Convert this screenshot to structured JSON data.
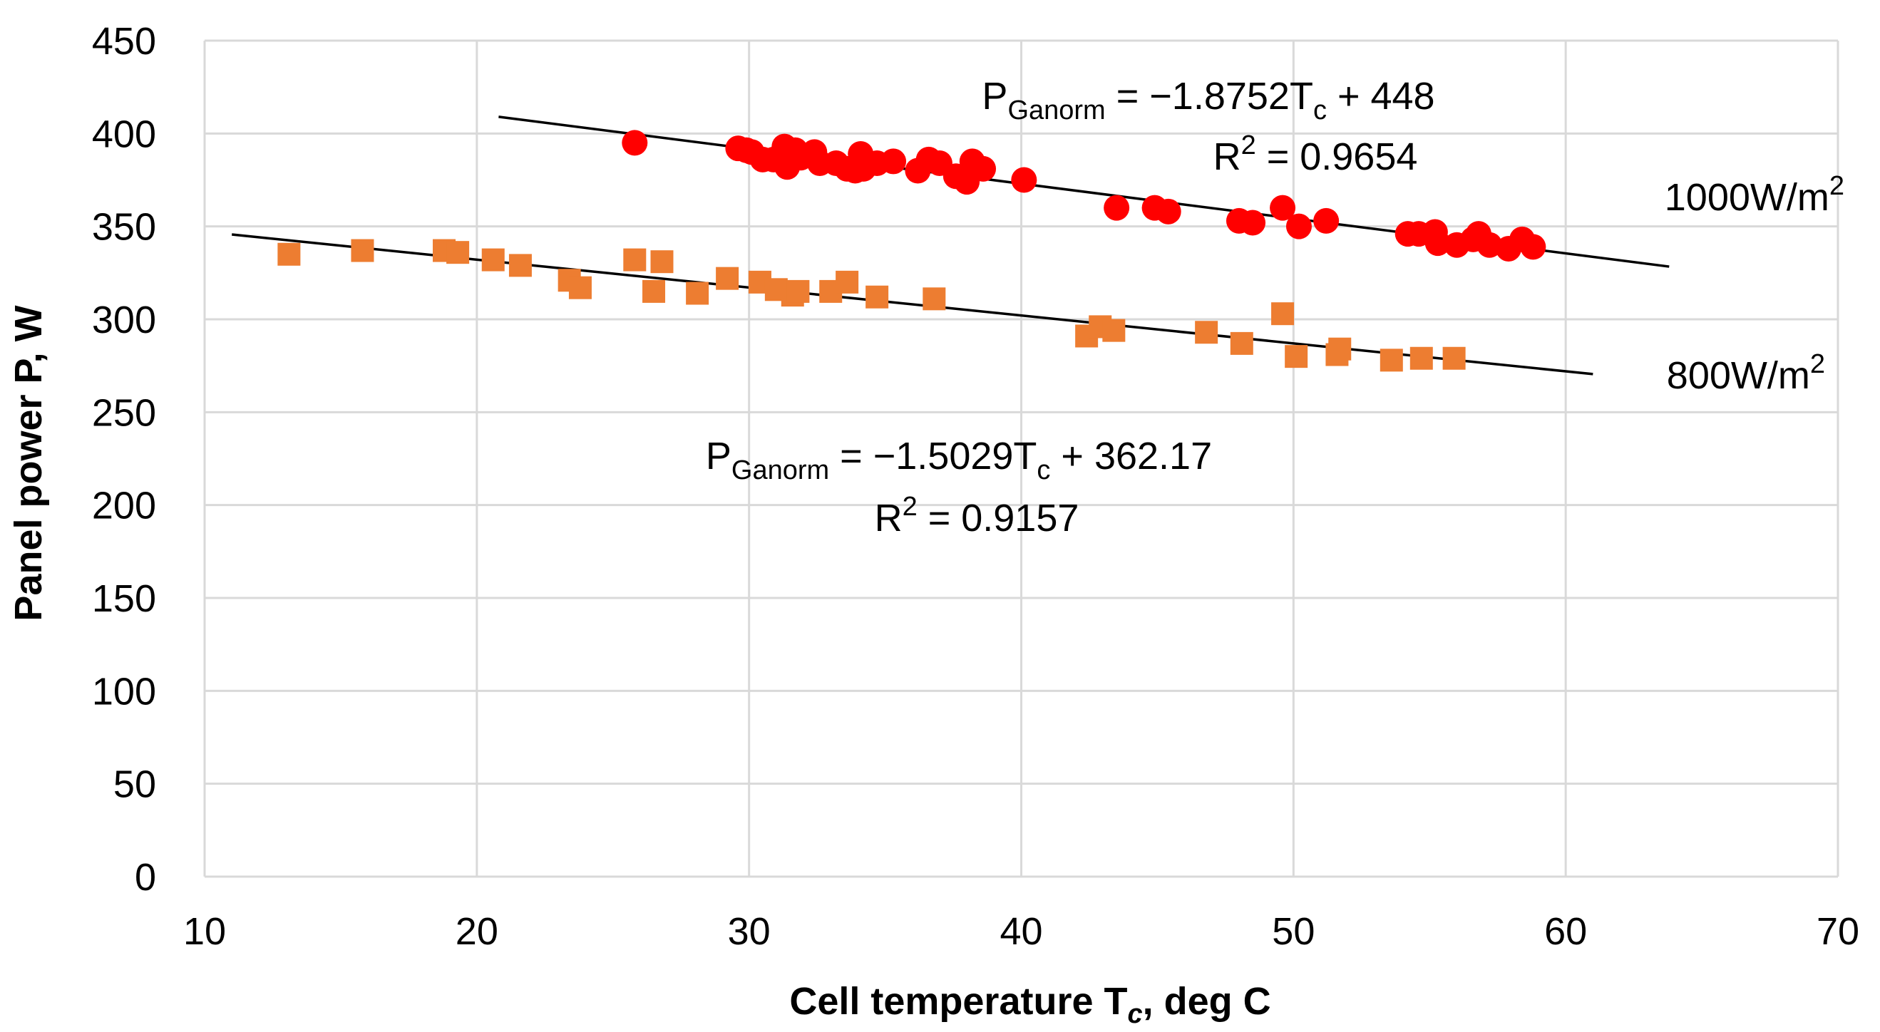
{
  "chart_data": {
    "type": "scatter",
    "title": "",
    "xlabel": {
      "prefix": "Cell temperature T",
      "subscript": "c",
      "suffix": ", deg C"
    },
    "ylabel": "Panel power P, W",
    "xlim": [
      10,
      70
    ],
    "ylim": [
      0,
      450
    ],
    "xticks": [
      10,
      20,
      30,
      40,
      50,
      60,
      70
    ],
    "yticks": [
      0,
      50,
      100,
      150,
      200,
      250,
      300,
      350,
      400,
      450
    ],
    "grid": true,
    "series": [
      {
        "name": "1000W/m2",
        "label_main": "1000W/m",
        "label_sup": "2",
        "marker": "circle",
        "color": "#ff0000",
        "x": [
          25.8,
          29.6,
          29.9,
          30.1,
          30.5,
          30.9,
          31.3,
          31.4,
          31.7,
          31.9,
          32.4,
          32.6,
          33.2,
          33.6,
          33.9,
          34.1,
          34.2,
          34.7,
          35.3,
          36.2,
          36.6,
          37.0,
          37.6,
          38.0,
          38.2,
          38.6,
          40.1,
          43.5,
          44.9,
          45.4,
          48.0,
          48.5,
          49.6,
          50.2,
          51.2,
          54.2,
          54.6,
          55.2,
          55.3,
          56.0,
          56.6,
          56.8,
          57.2,
          57.9,
          58.4,
          58.8
        ],
        "y": [
          395,
          392,
          391,
          390,
          386,
          386,
          393,
          382,
          391,
          387,
          390,
          384,
          384,
          381,
          380,
          389,
          381,
          384,
          385,
          380,
          386,
          384,
          377,
          374,
          385,
          381,
          375,
          360,
          360,
          358,
          353,
          352,
          360,
          350,
          353,
          346,
          346,
          347,
          341,
          340,
          343,
          346,
          340,
          338,
          343,
          339
        ]
      },
      {
        "name": "800W/m2",
        "label_main": "800W/m",
        "label_sup": "2",
        "marker": "square",
        "color": "#ed7d31",
        "x": [
          13.1,
          15.8,
          18.8,
          19.3,
          20.6,
          21.6,
          23.4,
          23.8,
          25.8,
          26.5,
          26.8,
          28.1,
          29.2,
          30.4,
          31.0,
          31.6,
          31.8,
          33.0,
          33.6,
          34.7,
          36.8,
          42.4,
          42.9,
          43.4,
          46.8,
          48.1,
          49.6,
          50.1,
          51.6,
          51.7,
          53.6,
          54.7,
          55.9
        ],
        "y": [
          335,
          337,
          337,
          336,
          332,
          329,
          321,
          317,
          332,
          315,
          331,
          314,
          322,
          320,
          316,
          313,
          315,
          315,
          320,
          312,
          311,
          291,
          296,
          294,
          293,
          287,
          303,
          280,
          281,
          284,
          278,
          279,
          279
        ]
      }
    ],
    "trendlines": [
      {
        "series": "1000W/m2",
        "slope": -1.8752,
        "intercept": 448,
        "x_range": [
          20.8,
          63.8
        ],
        "eq_var": "P",
        "eq_var_sub": "Ganorm",
        "eq_body": " = −1.8752T",
        "eq_body_sub": "c",
        "eq_tail": " + 448",
        "r2_prefix": "R",
        "r2_sup": "2",
        "r2_value": " = 0.9654"
      },
      {
        "series": "800W/m2",
        "slope": -1.5029,
        "intercept": 362.17,
        "x_range": [
          11.0,
          61.0
        ],
        "eq_var": "P",
        "eq_var_sub": "Ganorm",
        "eq_body": " = −1.5029T",
        "eq_body_sub": "c",
        "eq_tail": " + 362.17",
        "r2_prefix": "R",
        "r2_sup": "2",
        "r2_value": " = 0.9157"
      }
    ]
  },
  "colors": {
    "grid": "#d9d9d9",
    "trendline": "#000000",
    "text": "#000000"
  }
}
